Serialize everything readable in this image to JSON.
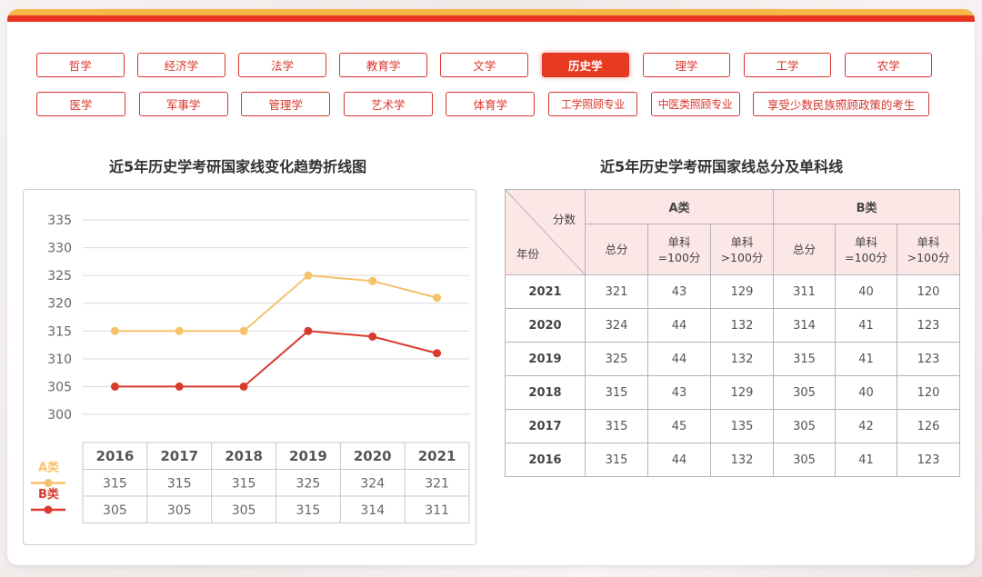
{
  "subjects": {
    "row1": [
      "哲学",
      "经济学",
      "法学",
      "教育学",
      "文学",
      "历史学",
      "理学",
      "工学",
      "农学"
    ],
    "row2": [
      "医学",
      "军事学",
      "管理学",
      "艺术学",
      "体育学",
      "工学照顾专业",
      "中医类照顾专业",
      "享受少数民族照顾政策的考生"
    ],
    "active": "历史学"
  },
  "chart_title": "近5年历史学考研国家线变化趋势折线图",
  "table_title": "近5年历史学考研国家线总分及单科线",
  "chart_data": {
    "type": "line",
    "categories": [
      "2016",
      "2017",
      "2018",
      "2019",
      "2020",
      "2021"
    ],
    "series": [
      {
        "name": "A类",
        "values": [
          315,
          315,
          315,
          325,
          324,
          321
        ],
        "color": "#f6c26b"
      },
      {
        "name": "B类",
        "values": [
          305,
          305,
          305,
          315,
          314,
          311
        ],
        "color": "#d93a2e"
      }
    ],
    "yticks": [
      335,
      330,
      325,
      320,
      315,
      310,
      305,
      300
    ],
    "ylim": [
      300,
      335
    ],
    "grid": true,
    "legend": "data-table-left"
  },
  "table": {
    "diag_top": "分数",
    "diag_bottom": "年份",
    "group_a": "A类",
    "group_b": "B类",
    "sub_headers": [
      "总分",
      "单科\n=100分",
      "单科\n>100分",
      "总分",
      "单科\n=100分",
      "单科\n>100分"
    ],
    "rows": [
      [
        "2021",
        "321",
        "43",
        "129",
        "311",
        "40",
        "120"
      ],
      [
        "2020",
        "324",
        "44",
        "132",
        "314",
        "41",
        "123"
      ],
      [
        "2019",
        "325",
        "44",
        "132",
        "315",
        "41",
        "123"
      ],
      [
        "2018",
        "315",
        "43",
        "129",
        "305",
        "40",
        "120"
      ],
      [
        "2017",
        "315",
        "45",
        "135",
        "305",
        "42",
        "126"
      ],
      [
        "2016",
        "315",
        "44",
        "132",
        "305",
        "41",
        "123"
      ]
    ]
  }
}
